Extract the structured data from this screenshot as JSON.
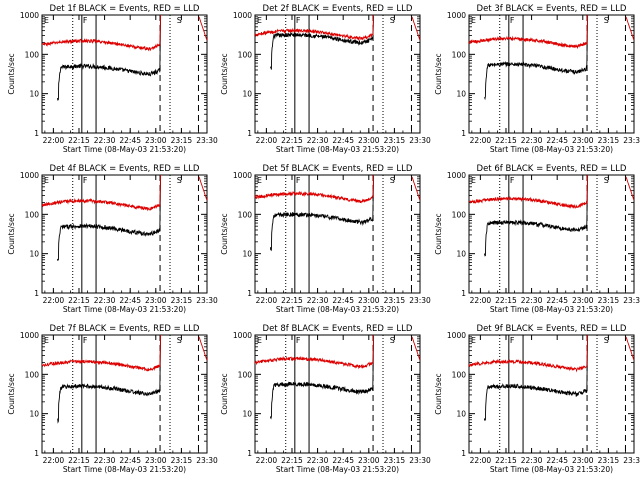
{
  "chart_data": [
    {
      "type": "line",
      "title": "Det 1f BLACK = Events, RED = LLD",
      "xlabel": "Start Time (08-May-03 21:53:20)",
      "ylabel": "Counts/sec",
      "log_y": true,
      "ylim": [
        1,
        1000
      ],
      "xlim": [
        0,
        5800
      ],
      "x_ticks": [
        "22:00",
        "22:15",
        "22:30",
        "22:45",
        "23:00",
        "23:15",
        "23:30"
      ],
      "y_ticks": [
        "1",
        "10",
        "100",
        "1000"
      ],
      "series": [
        {
          "name": "Events",
          "color": "#000000",
          "start": 540,
          "base": 40,
          "end": 4150,
          "spike": 900
        },
        {
          "name": "LLD",
          "color": "#dd0000",
          "start": 0,
          "base": 175,
          "end": 4150,
          "spike": 1000
        }
      ],
      "flags": [
        {
          "label": "E",
          "x": 30
        },
        {
          "label": "F",
          "x": 1400
        },
        {
          "label": "S",
          "x": 4700
        }
      ],
      "vlines": [
        {
          "x": 1080,
          "style": "dotted"
        },
        {
          "x": 1400,
          "style": "solid"
        },
        {
          "x": 1900,
          "style": "solid"
        },
        {
          "x": 4150,
          "style": "dashed"
        },
        {
          "x": 4500,
          "style": "dotted"
        },
        {
          "x": 5500,
          "style": "dashed"
        }
      ]
    },
    {
      "type": "line",
      "title": "Det 2f BLACK = Events, RED = LLD",
      "xlabel": "Start Time (08-May-03 21:53:20)",
      "ylabel": "Counts/sec",
      "log_y": true,
      "ylim": [
        1,
        1000
      ],
      "xlim": [
        0,
        5800
      ],
      "x_ticks": [
        "22:00",
        "22:15",
        "22:30",
        "22:45",
        "23:00",
        "23:15",
        "23:30"
      ],
      "y_ticks": [
        "1",
        "10",
        "100",
        "1000"
      ],
      "series": [
        {
          "name": "Events",
          "color": "#000000",
          "start": 540,
          "base": 250,
          "end": 4150,
          "spike": 900
        },
        {
          "name": "LLD",
          "color": "#dd0000",
          "start": 0,
          "base": 320,
          "end": 4150,
          "spike": 1000
        }
      ],
      "flags": [
        {
          "label": "E",
          "x": 30
        },
        {
          "label": "F",
          "x": 1400
        },
        {
          "label": "S",
          "x": 4700
        }
      ],
      "vlines": [
        {
          "x": 1080,
          "style": "dotted"
        },
        {
          "x": 1400,
          "style": "solid"
        },
        {
          "x": 1900,
          "style": "solid"
        },
        {
          "x": 4150,
          "style": "dashed"
        },
        {
          "x": 4500,
          "style": "dotted"
        },
        {
          "x": 5500,
          "style": "dashed"
        }
      ]
    },
    {
      "type": "line",
      "title": "Det 3f BLACK = Events, RED = LLD",
      "xlabel": "Start Time (08-May-03 21:53:20)",
      "ylabel": "Counts/sec",
      "log_y": true,
      "ylim": [
        1,
        1000
      ],
      "xlim": [
        0,
        5800
      ],
      "x_ticks": [
        "22:00",
        "22:15",
        "22:30",
        "22:45",
        "23:00",
        "23:15",
        "23:30"
      ],
      "y_ticks": [
        "1",
        "10",
        "100",
        "1000"
      ],
      "series": [
        {
          "name": "Events",
          "color": "#000000",
          "start": 540,
          "base": 45,
          "end": 4150,
          "spike": 900
        },
        {
          "name": "LLD",
          "color": "#dd0000",
          "start": 0,
          "base": 200,
          "end": 4150,
          "spike": 1000
        }
      ],
      "flags": [
        {
          "label": "E",
          "x": 30
        },
        {
          "label": "F",
          "x": 1400
        },
        {
          "label": "S",
          "x": 4700
        }
      ],
      "vlines": [
        {
          "x": 1080,
          "style": "dotted"
        },
        {
          "x": 1400,
          "style": "solid"
        },
        {
          "x": 1900,
          "style": "solid"
        },
        {
          "x": 4150,
          "style": "dashed"
        },
        {
          "x": 4500,
          "style": "dotted"
        },
        {
          "x": 5500,
          "style": "dashed"
        }
      ]
    },
    {
      "type": "line",
      "title": "Det 4f BLACK = Events, RED = LLD",
      "xlabel": "Start Time (08-May-03 21:53:20)",
      "ylabel": "Counts/sec",
      "log_y": true,
      "ylim": [
        1,
        1000
      ],
      "xlim": [
        0,
        5800
      ],
      "x_ticks": [
        "22:00",
        "22:15",
        "22:30",
        "22:45",
        "23:00",
        "23:15",
        "23:30"
      ],
      "y_ticks": [
        "1",
        "10",
        "100",
        "1000"
      ],
      "series": [
        {
          "name": "Events",
          "color": "#000000",
          "start": 540,
          "base": 40,
          "end": 4150,
          "spike": 900
        },
        {
          "name": "LLD",
          "color": "#dd0000",
          "start": 0,
          "base": 175,
          "end": 4150,
          "spike": 1000
        }
      ],
      "flags": [
        {
          "label": "E",
          "x": 30
        },
        {
          "label": "F",
          "x": 1400
        },
        {
          "label": "S",
          "x": 4700
        }
      ],
      "vlines": [
        {
          "x": 1080,
          "style": "dotted"
        },
        {
          "x": 1400,
          "style": "solid"
        },
        {
          "x": 1900,
          "style": "solid"
        },
        {
          "x": 4150,
          "style": "dashed"
        },
        {
          "x": 4500,
          "style": "dotted"
        },
        {
          "x": 5500,
          "style": "dashed"
        }
      ]
    },
    {
      "type": "line",
      "title": "Det 5f BLACK = Events, RED = LLD",
      "xlabel": "Start Time (08-May-03 21:53:20)",
      "ylabel": "Counts/sec",
      "log_y": true,
      "ylim": [
        1,
        1000
      ],
      "xlim": [
        0,
        5800
      ],
      "x_ticks": [
        "22:00",
        "22:15",
        "22:30",
        "22:45",
        "23:00",
        "23:15",
        "23:30"
      ],
      "y_ticks": [
        "1",
        "10",
        "100",
        "1000"
      ],
      "series": [
        {
          "name": "Events",
          "color": "#000000",
          "start": 540,
          "base": 80,
          "end": 4150,
          "spike": 900
        },
        {
          "name": "LLD",
          "color": "#dd0000",
          "start": 0,
          "base": 270,
          "end": 4150,
          "spike": 1000
        }
      ],
      "flags": [
        {
          "label": "E",
          "x": 30
        },
        {
          "label": "F",
          "x": 1400
        },
        {
          "label": "S",
          "x": 4700
        }
      ],
      "vlines": [
        {
          "x": 1080,
          "style": "dotted"
        },
        {
          "x": 1400,
          "style": "solid"
        },
        {
          "x": 1900,
          "style": "solid"
        },
        {
          "x": 4150,
          "style": "dashed"
        },
        {
          "x": 4500,
          "style": "dotted"
        },
        {
          "x": 5500,
          "style": "dashed"
        }
      ]
    },
    {
      "type": "line",
      "title": "Det 6f BLACK = Events, RED = LLD",
      "xlabel": "Start Time (08-May-03 21:53:20)",
      "ylabel": "Counts/sec",
      "log_y": true,
      "ylim": [
        1,
        1000
      ],
      "xlim": [
        0,
        5800
      ],
      "x_ticks": [
        "22:00",
        "22:15",
        "22:30",
        "22:45",
        "23:00",
        "23:15",
        "23:30"
      ],
      "y_ticks": [
        "1",
        "10",
        "100",
        "1000"
      ],
      "series": [
        {
          "name": "Events",
          "color": "#000000",
          "start": 540,
          "base": 50,
          "end": 4150,
          "spike": 900
        },
        {
          "name": "LLD",
          "color": "#dd0000",
          "start": 0,
          "base": 200,
          "end": 4150,
          "spike": 1000
        }
      ],
      "flags": [
        {
          "label": "E",
          "x": 30
        },
        {
          "label": "F",
          "x": 1400
        },
        {
          "label": "S",
          "x": 4700
        }
      ],
      "vlines": [
        {
          "x": 1080,
          "style": "dotted"
        },
        {
          "x": 1400,
          "style": "solid"
        },
        {
          "x": 1900,
          "style": "solid"
        },
        {
          "x": 4150,
          "style": "dashed"
        },
        {
          "x": 4500,
          "style": "dotted"
        },
        {
          "x": 5500,
          "style": "dashed"
        }
      ]
    },
    {
      "type": "line",
      "title": "Det 7f BLACK = Events, RED = LLD",
      "xlabel": "Start Time (08-May-03 21:53:20)",
      "ylabel": "Counts/sec",
      "log_y": true,
      "ylim": [
        1,
        1000
      ],
      "xlim": [
        0,
        5800
      ],
      "x_ticks": [
        "22:00",
        "22:15",
        "22:30",
        "22:45",
        "23:00",
        "23:15",
        "23:30"
      ],
      "y_ticks": [
        "1",
        "10",
        "100",
        "1000"
      ],
      "series": [
        {
          "name": "Events",
          "color": "#000000",
          "start": 540,
          "base": 40,
          "end": 4150,
          "spike": 900
        },
        {
          "name": "LLD",
          "color": "#dd0000",
          "start": 0,
          "base": 170,
          "end": 4150,
          "spike": 1000
        }
      ],
      "flags": [
        {
          "label": "E",
          "x": 30
        },
        {
          "label": "F",
          "x": 1400
        },
        {
          "label": "S",
          "x": 4700
        }
      ],
      "vlines": [
        {
          "x": 1080,
          "style": "dotted"
        },
        {
          "x": 1400,
          "style": "solid"
        },
        {
          "x": 1900,
          "style": "solid"
        },
        {
          "x": 4150,
          "style": "dashed"
        },
        {
          "x": 4500,
          "style": "dotted"
        },
        {
          "x": 5500,
          "style": "dashed"
        }
      ]
    },
    {
      "type": "line",
      "title": "Det 8f BLACK = Events, RED = LLD",
      "xlabel": "Start Time (08-May-03 21:53:20)",
      "ylabel": "Counts/sec",
      "log_y": true,
      "ylim": [
        1,
        1000
      ],
      "xlim": [
        0,
        5800
      ],
      "x_ticks": [
        "22:00",
        "22:15",
        "22:30",
        "22:45",
        "23:00",
        "23:15",
        "23:30"
      ],
      "y_ticks": [
        "1",
        "10",
        "100",
        "1000"
      ],
      "series": [
        {
          "name": "Events",
          "color": "#000000",
          "start": 540,
          "base": 45,
          "end": 4150,
          "spike": 900
        },
        {
          "name": "LLD",
          "color": "#dd0000",
          "start": 0,
          "base": 200,
          "end": 4150,
          "spike": 1000
        }
      ],
      "flags": [
        {
          "label": "E",
          "x": 30
        },
        {
          "label": "F",
          "x": 1400
        },
        {
          "label": "S",
          "x": 4700
        }
      ],
      "vlines": [
        {
          "x": 1080,
          "style": "dotted"
        },
        {
          "x": 1400,
          "style": "solid"
        },
        {
          "x": 1900,
          "style": "solid"
        },
        {
          "x": 4150,
          "style": "dashed"
        },
        {
          "x": 4500,
          "style": "dotted"
        },
        {
          "x": 5500,
          "style": "dashed"
        }
      ]
    },
    {
      "type": "line",
      "title": "Det 9f BLACK = Events, RED = LLD",
      "xlabel": "Start Time (08-May-03 21:53:20)",
      "ylabel": "Counts/sec",
      "log_y": true,
      "ylim": [
        1,
        1000
      ],
      "xlim": [
        0,
        5800
      ],
      "x_ticks": [
        "22:00",
        "22:15",
        "22:30",
        "22:45",
        "23:00",
        "23:15",
        "23:30"
      ],
      "y_ticks": [
        "1",
        "10",
        "100",
        "1000"
      ],
      "series": [
        {
          "name": "Events",
          "color": "#000000",
          "start": 540,
          "base": 40,
          "end": 4150,
          "spike": 900
        },
        {
          "name": "LLD",
          "color": "#dd0000",
          "start": 0,
          "base": 170,
          "end": 4150,
          "spike": 1000
        }
      ],
      "flags": [
        {
          "label": "E",
          "x": 30
        },
        {
          "label": "F",
          "x": 1400
        },
        {
          "label": "S",
          "x": 4700
        }
      ],
      "vlines": [
        {
          "x": 1080,
          "style": "dotted"
        },
        {
          "x": 1400,
          "style": "solid"
        },
        {
          "x": 1900,
          "style": "solid"
        },
        {
          "x": 4150,
          "style": "dashed"
        },
        {
          "x": 4500,
          "style": "dotted"
        },
        {
          "x": 5500,
          "style": "dashed"
        }
      ]
    }
  ]
}
